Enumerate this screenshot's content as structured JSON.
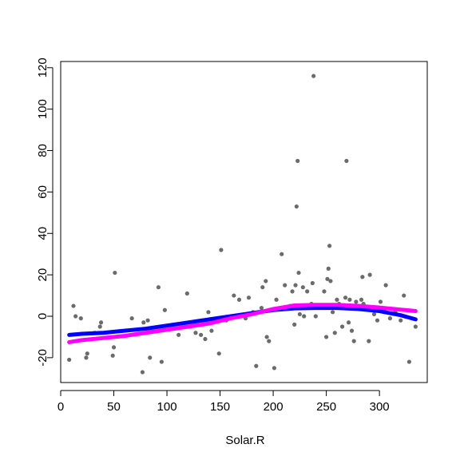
{
  "chart_data": {
    "type": "scatter",
    "xlabel": "Solar.R",
    "ylabel": "",
    "xlim": [
      0,
      345
    ],
    "ylim": [
      -32,
      123
    ],
    "x_ticks": [
      0,
      50,
      100,
      150,
      200,
      250,
      300
    ],
    "y_ticks": [
      -20,
      0,
      20,
      40,
      60,
      80,
      100,
      120
    ],
    "x_tick_labels": [
      "0",
      "50",
      "100",
      "150",
      "200",
      "250",
      "300"
    ],
    "y_tick_labels": [
      "-20",
      "0",
      "20",
      "40",
      "60",
      "80",
      "100",
      "120"
    ],
    "grid": false,
    "colors": {
      "points": "#6b6b6b",
      "curve_blue": "#0000ff",
      "curve_magenta": "#ff00ff",
      "box": "#000000"
    },
    "points": {
      "color": "#6b6b6b",
      "x": [
        8,
        12,
        14,
        19,
        24,
        25,
        32,
        37,
        38,
        49,
        50,
        51,
        67,
        77,
        78,
        82,
        84,
        92,
        95,
        98,
        111,
        119,
        127,
        132,
        136,
        139,
        142,
        149,
        151,
        156,
        163,
        168,
        174,
        177,
        181,
        184,
        186,
        189,
        190,
        193,
        194,
        196,
        201,
        203,
        208,
        211,
        216,
        218,
        220,
        221,
        222,
        223,
        224,
        225,
        228,
        229,
        232,
        236,
        237,
        238,
        240,
        244,
        248,
        250,
        251,
        252,
        253,
        254,
        256,
        258,
        260,
        262,
        265,
        268,
        269,
        271,
        272,
        274,
        276,
        278,
        283,
        284,
        285,
        290,
        291,
        295,
        298,
        301,
        306,
        310,
        315,
        320,
        323,
        328,
        334
      ],
      "y": [
        -21,
        5,
        0,
        -1,
        -20,
        -18,
        -8,
        -5,
        -3,
        -19,
        -15,
        21,
        -1,
        -27,
        -3,
        -2,
        -20,
        14,
        -22,
        3,
        -9,
        11,
        -8,
        -9,
        -11,
        2,
        -7,
        -18,
        32,
        -2,
        10,
        8,
        -1,
        9,
        2,
        -24,
        2,
        4,
        14,
        17,
        -10,
        -12,
        -25,
        8,
        30,
        15,
        5,
        12,
        -4,
        15,
        53,
        75,
        21,
        1,
        14,
        0,
        12,
        6,
        16,
        116,
        0,
        5,
        12,
        -10,
        18,
        23,
        34,
        17,
        2,
        -8,
        8,
        6,
        -5,
        9,
        75,
        -3,
        8,
        -7,
        -12,
        7,
        8,
        19,
        6,
        -12,
        20,
        1,
        -2,
        7,
        15,
        -1,
        2,
        -2,
        10,
        -22,
        -5
      ]
    },
    "series": [
      {
        "color": "#0000ff",
        "x": [
          8,
          20,
          40,
          60,
          80,
          100,
          120,
          140,
          160,
          180,
          200,
          220,
          240,
          260,
          280,
          300,
          320,
          334
        ],
        "y": [
          -9,
          -8.5,
          -8,
          -7,
          -6,
          -4.5,
          -3,
          -1.5,
          0,
          1.5,
          3,
          3.8,
          4,
          4,
          3.5,
          2.5,
          0.5,
          -1.5
        ]
      },
      {
        "color": "#ff00ff",
        "x": [
          8,
          20,
          40,
          60,
          80,
          100,
          120,
          140,
          160,
          180,
          200,
          220,
          240,
          260,
          280,
          300,
          320,
          334
        ],
        "y": [
          -12.5,
          -11.5,
          -10.5,
          -9.5,
          -8,
          -6.5,
          -5,
          -3.5,
          -1,
          1,
          3.5,
          5.2,
          5.5,
          5.5,
          5,
          4.2,
          3.2,
          2.5
        ]
      }
    ]
  }
}
